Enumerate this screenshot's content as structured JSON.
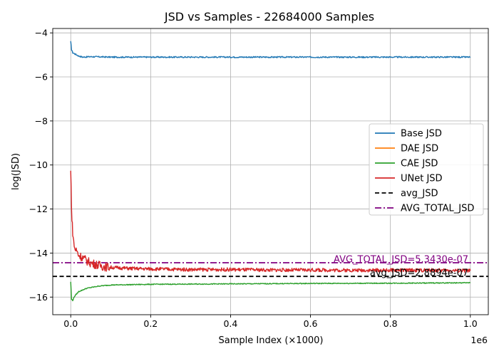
{
  "chart_data": {
    "type": "line",
    "title": "JSD vs Samples - 22684000 Samples",
    "xlabel": "Sample Index (×1000)",
    "ylabel": "log(JSD)",
    "x_offset_text": "1e6",
    "xlim": [
      -45000,
      1045000
    ],
    "ylim": [
      -16.8,
      -3.8
    ],
    "x_ticks": [
      0,
      200000,
      400000,
      600000,
      800000,
      1000000
    ],
    "x_tick_labels": [
      "0.0",
      "0.2",
      "0.4",
      "0.6",
      "0.8",
      "1.0"
    ],
    "y_ticks": [
      -16,
      -14,
      -12,
      -10,
      -8,
      -6,
      -4
    ],
    "y_tick_labels": [
      "−16",
      "−14",
      "−12",
      "−10",
      "−8",
      "−6",
      "−4"
    ],
    "grid": true,
    "legend_position": "center-right",
    "series": [
      {
        "name": "Base JSD",
        "color": "#1f77b4",
        "style": "solid",
        "x": [
          0,
          2000,
          5000,
          10000,
          15000,
          20000,
          30000,
          50000,
          100000,
          200000,
          400000,
          600000,
          800000,
          1000000
        ],
        "y": [
          -4.4,
          -4.75,
          -4.9,
          -4.95,
          -5.0,
          -5.05,
          -5.1,
          -5.08,
          -5.1,
          -5.1,
          -5.1,
          -5.1,
          -5.1,
          -5.1
        ]
      },
      {
        "name": "DAE JSD",
        "color": "#ff7f0e",
        "style": "solid",
        "x": [],
        "y": []
      },
      {
        "name": "CAE JSD",
        "color": "#2ca02c",
        "style": "solid",
        "x": [
          0,
          2000,
          5000,
          10000,
          20000,
          40000,
          70000,
          100000,
          200000,
          400000,
          600000,
          800000,
          1000000
        ],
        "y": [
          -15.3,
          -16.1,
          -16.15,
          -15.95,
          -15.75,
          -15.6,
          -15.5,
          -15.45,
          -15.42,
          -15.4,
          -15.38,
          -15.37,
          -15.35
        ]
      },
      {
        "name": "UNet JSD",
        "color": "#d62728",
        "style": "solid",
        "x": [
          0,
          3000,
          6000,
          10000,
          15000,
          20000,
          30000,
          40000,
          50000,
          60000,
          80000,
          100000,
          150000,
          200000,
          300000,
          400000,
          500000,
          600000,
          700000,
          800000,
          900000,
          1000000
        ],
        "y": [
          -10.3,
          -12.5,
          -13.3,
          -13.8,
          -13.9,
          -14.1,
          -14.2,
          -14.35,
          -14.45,
          -14.5,
          -14.6,
          -14.65,
          -14.7,
          -14.72,
          -14.75,
          -14.75,
          -14.77,
          -14.77,
          -14.78,
          -14.78,
          -14.78,
          -14.8
        ]
      }
    ],
    "reference_lines": [
      {
        "name": "avg_JSD",
        "value": -15.06,
        "color": "#000000",
        "style": "dashed",
        "annotation": "avg_JSD=2.8894e-07"
      },
      {
        "name": "AVG_TOTAL_JSD",
        "value": -14.44,
        "color": "#800080",
        "style": "dashdot",
        "annotation": "AVG_TOTAL_JSD=5.3430e-07"
      }
    ],
    "legend": [
      "Base JSD",
      "DAE JSD",
      "CAE JSD",
      "UNet JSD",
      "avg_JSD",
      "AVG_TOTAL_JSD"
    ]
  }
}
